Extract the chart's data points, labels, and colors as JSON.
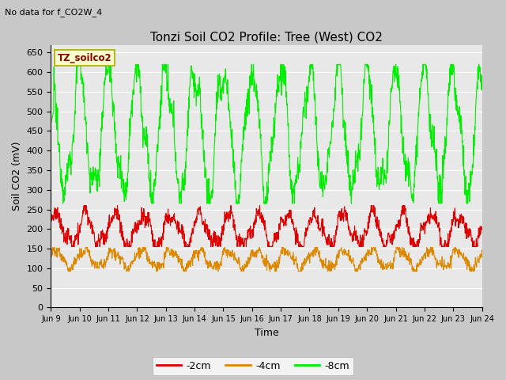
{
  "title": "Tonzi Soil CO2 Profile: Tree (West) CO2",
  "subtitle": "No data for f_CO2W_4",
  "ylabel": "Soil CO2 (mV)",
  "xlabel": "Time",
  "box_label": "TZ_soilco2",
  "ylim": [
    0,
    670
  ],
  "yticks": [
    0,
    50,
    100,
    150,
    200,
    250,
    300,
    350,
    400,
    450,
    500,
    550,
    600,
    650
  ],
  "xtick_labels": [
    "Jun 9",
    "Jun 10",
    "Jun 11",
    "Jun 12",
    "Jun 13",
    "Jun 14",
    "Jun 15",
    "Jun 16",
    "Jun 17",
    "Jun 18",
    "Jun 19",
    "Jun 20",
    "Jun 21",
    "Jun 22",
    "Jun 23",
    "Jun 24"
  ],
  "fig_bg_color": "#c8c8c8",
  "plot_bg_color": "#e8e8e8",
  "line_2cm_color": "#dd0000",
  "line_4cm_color": "#dd8800",
  "line_8cm_color": "#00ee00",
  "line_width": 0.8,
  "legend_labels": [
    "-2cm",
    "-4cm",
    "-8cm"
  ],
  "title_fontsize": 11,
  "axis_label_fontsize": 9,
  "tick_fontsize": 8
}
